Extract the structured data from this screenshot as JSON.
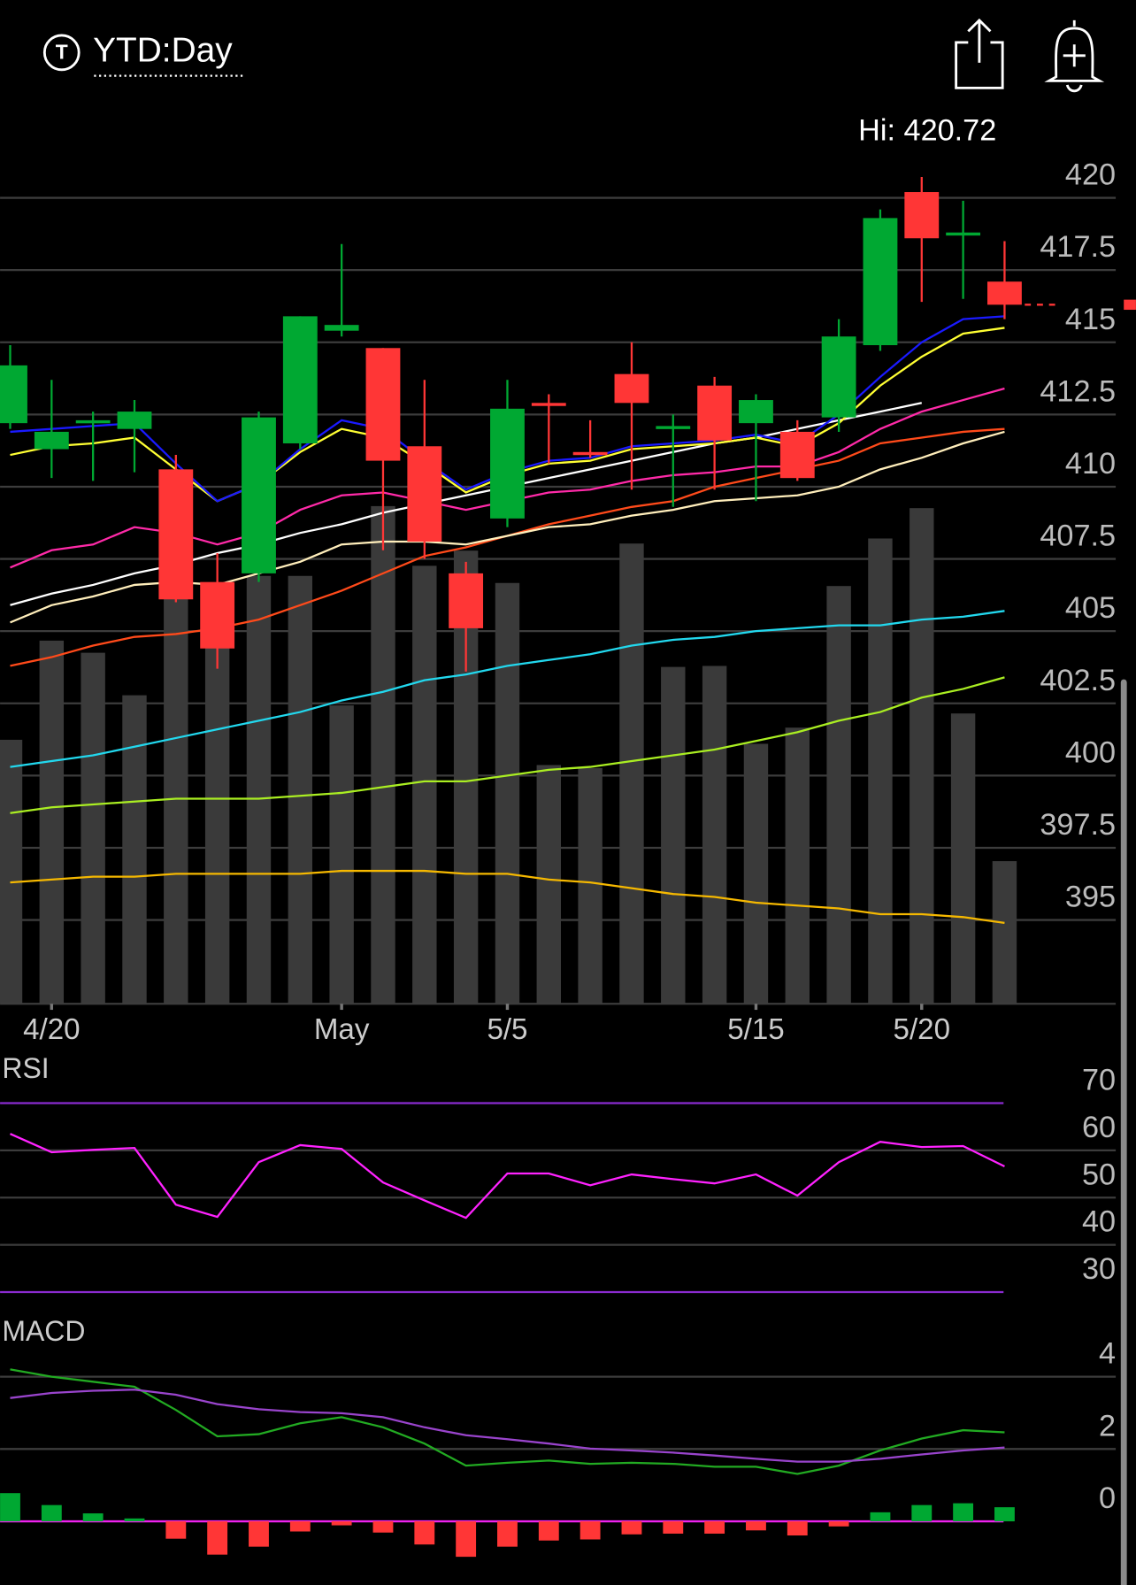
{
  "header": {
    "icon": "T",
    "title": "YTD:Day",
    "high": "Hi: 420.72"
  },
  "chart_data": [
    {
      "type": "candlestick",
      "categories": [
        null,
        "4/20",
        null,
        null,
        null,
        null,
        null,
        null,
        "May",
        null,
        null,
        null,
        "5/5",
        null,
        null,
        null,
        null,
        null,
        "5/15",
        null,
        null,
        null,
        "5/20",
        null,
        null
      ],
      "open": [
        412.2,
        411.3,
        412.2,
        412.0,
        410.6,
        406.7,
        407.0,
        411.5,
        415.4,
        414.8,
        411.4,
        407.0,
        408.9,
        412.9,
        411.2,
        413.9,
        412.0,
        413.5,
        412.2,
        411.9,
        412.4,
        414.9,
        420.2,
        418.7,
        417.1
      ],
      "high": [
        414.9,
        413.7,
        412.6,
        413.0,
        411.1,
        407.7,
        412.6,
        415.9,
        418.4,
        414.8,
        413.7,
        407.4,
        413.7,
        413.2,
        412.3,
        415.0,
        412.5,
        413.8,
        413.2,
        412.3,
        415.8,
        419.6,
        420.72,
        419.9,
        418.5
      ],
      "low": [
        412.0,
        410.3,
        410.2,
        410.5,
        406.0,
        403.7,
        406.7,
        411.3,
        415.2,
        407.8,
        407.5,
        403.6,
        408.6,
        410.8,
        411.0,
        409.9,
        409.3,
        409.9,
        409.5,
        410.2,
        411.9,
        414.7,
        416.4,
        416.5,
        415.8
      ],
      "close": [
        414.2,
        411.9,
        412.3,
        412.6,
        406.1,
        404.4,
        412.4,
        415.9,
        415.6,
        410.9,
        408.1,
        405.1,
        412.7,
        412.8,
        411.1,
        412.9,
        412.1,
        411.6,
        413.0,
        410.3,
        415.2,
        419.3,
        418.6,
        418.8,
        416.3
      ],
      "volume": [
        261,
        359,
        347,
        305,
        433,
        393,
        423,
        423,
        295,
        492,
        433,
        448,
        416,
        236,
        233,
        455,
        333,
        334,
        257,
        273,
        413,
        460,
        490,
        287,
        141
      ],
      "up_color": "#00a832",
      "down_color": "#ff3636",
      "volume_color": "#3a3a3a",
      "series": [
        {
          "color": "#f5b800",
          "values": [
            396.3,
            396.4,
            396.5,
            396.5,
            396.6,
            396.6,
            396.6,
            396.6,
            396.7,
            396.7,
            396.7,
            396.6,
            396.6,
            396.4,
            396.3,
            396.1,
            395.9,
            395.8,
            395.6,
            395.5,
            395.4,
            395.2,
            395.2,
            395.1,
            394.9
          ]
        },
        {
          "color": "#aaee22",
          "values": [
            398.7,
            398.9,
            399.0,
            399.1,
            399.2,
            399.2,
            399.2,
            399.3,
            399.4,
            399.6,
            399.8,
            399.8,
            400.0,
            400.2,
            400.3,
            400.5,
            400.7,
            400.9,
            401.2,
            401.5,
            401.9,
            402.2,
            402.7,
            403.0,
            403.4
          ]
        },
        {
          "color": "#22d8ee",
          "values": [
            400.3,
            400.5,
            400.7,
            401.0,
            401.3,
            401.6,
            401.9,
            402.2,
            402.6,
            402.9,
            403.3,
            403.5,
            403.8,
            404.0,
            404.2,
            404.5,
            404.7,
            404.8,
            405.0,
            405.1,
            405.2,
            405.2,
            405.4,
            405.5,
            405.7
          ]
        },
        {
          "color": "#ff4a1a",
          "values": [
            403.8,
            404.1,
            404.5,
            404.8,
            404.9,
            405.1,
            405.4,
            405.9,
            406.4,
            407.0,
            407.6,
            407.9,
            408.3,
            408.7,
            409.0,
            409.3,
            409.5,
            410.0,
            410.3,
            410.6,
            410.9,
            411.5,
            411.7,
            411.9,
            412.0
          ]
        },
        {
          "color": "#ffeebb",
          "values": [
            405.3,
            405.9,
            406.2,
            406.6,
            406.7,
            406.6,
            407.0,
            407.4,
            408.0,
            408.1,
            408.1,
            408.0,
            408.3,
            408.6,
            408.7,
            409.0,
            409.2,
            409.5,
            409.6,
            409.7,
            410.0,
            410.6,
            411.0,
            411.5,
            411.9
          ]
        },
        {
          "color": "#ffffff",
          "values": [
            405.9,
            406.3,
            406.6,
            407.0,
            407.3,
            407.7,
            408.0,
            408.4,
            408.7,
            409.1,
            409.4,
            409.7,
            410.0,
            410.3,
            410.6,
            410.9,
            411.2,
            411.5,
            411.7,
            412.0,
            412.3,
            412.6,
            412.9,
            null,
            null
          ]
        },
        {
          "color": "#ff2aa8",
          "values": [
            407.2,
            407.8,
            408.0,
            408.6,
            408.4,
            408.0,
            408.4,
            409.2,
            409.7,
            409.8,
            409.5,
            409.2,
            409.5,
            409.8,
            409.9,
            410.2,
            410.4,
            410.5,
            410.7,
            410.7,
            411.2,
            412.0,
            412.6,
            413.0,
            413.4
          ]
        },
        {
          "color": "#ffff33",
          "values": [
            411.1,
            411.4,
            411.5,
            411.7,
            410.6,
            409.5,
            410.1,
            411.2,
            412.0,
            411.7,
            410.8,
            409.8,
            410.4,
            410.8,
            410.9,
            411.3,
            411.4,
            411.5,
            411.7,
            411.4,
            412.2,
            413.5,
            414.5,
            415.3,
            415.5
          ]
        },
        {
          "color": "#1a1aff",
          "values": [
            411.9,
            412.0,
            412.1,
            412.2,
            410.8,
            409.5,
            410.1,
            411.3,
            412.3,
            412.0,
            410.9,
            409.9,
            410.5,
            410.9,
            411.0,
            411.4,
            411.5,
            411.6,
            411.8,
            411.5,
            412.5,
            413.8,
            415.0,
            415.8,
            415.9
          ]
        }
      ],
      "ylim": [
        392.1,
        421.6
      ],
      "yticks": [
        420,
        417.5,
        415,
        412.5,
        410,
        407.5,
        405,
        402.5,
        400,
        397.5,
        395
      ],
      "grid": true
    },
    {
      "type": "line",
      "title": "RSI",
      "band_color": "#8a2bd0",
      "series": [
        {
          "color": "#ff22ff",
          "values": [
            63.5,
            59.6,
            60.1,
            60.5,
            48.5,
            45.9,
            57.5,
            61.1,
            60.3,
            53.2,
            49.4,
            45.7,
            55.1,
            55.1,
            52.6,
            54.9,
            53.9,
            53.0,
            54.9,
            50.4,
            57.5,
            61.8,
            60.7,
            60.9,
            56.6
          ]
        }
      ],
      "ylim": [
        26.4,
        79.9
      ],
      "yticks": [
        70,
        60,
        50,
        40,
        30
      ],
      "grid": true
    },
    {
      "type": "macd",
      "title": "MACD",
      "zero_color": "#ee22ee",
      "up_color": "#00a832",
      "down_color": "#ff3636",
      "series": [
        {
          "color": "#22aa22",
          "values": [
            4.2,
            4.0,
            3.86,
            3.72,
            3.08,
            2.35,
            2.41,
            2.71,
            2.88,
            2.6,
            2.15,
            1.54,
            1.62,
            1.68,
            1.59,
            1.62,
            1.59,
            1.51,
            1.51,
            1.31,
            1.54,
            1.96,
            2.29,
            2.52,
            2.46
          ]
        },
        {
          "color": "#9944cc",
          "values": [
            3.41,
            3.55,
            3.61,
            3.64,
            3.5,
            3.24,
            3.1,
            3.02,
            2.99,
            2.88,
            2.6,
            2.38,
            2.27,
            2.15,
            2.01,
            1.96,
            1.9,
            1.82,
            1.73,
            1.65,
            1.65,
            1.73,
            1.85,
            1.96,
            2.04
          ]
        }
      ],
      "histogram": [
        0.78,
        0.45,
        0.22,
        0.08,
        -0.48,
        -0.92,
        -0.7,
        -0.28,
        -0.11,
        -0.31,
        -0.64,
        -0.98,
        -0.7,
        -0.53,
        -0.5,
        -0.36,
        -0.34,
        -0.34,
        -0.25,
        -0.39,
        -0.14,
        0.25,
        0.45,
        0.5,
        0.39
      ],
      "ylim": [
        -1.76,
        5.59
      ],
      "yticks": [
        4,
        2,
        0
      ],
      "grid": true
    }
  ]
}
